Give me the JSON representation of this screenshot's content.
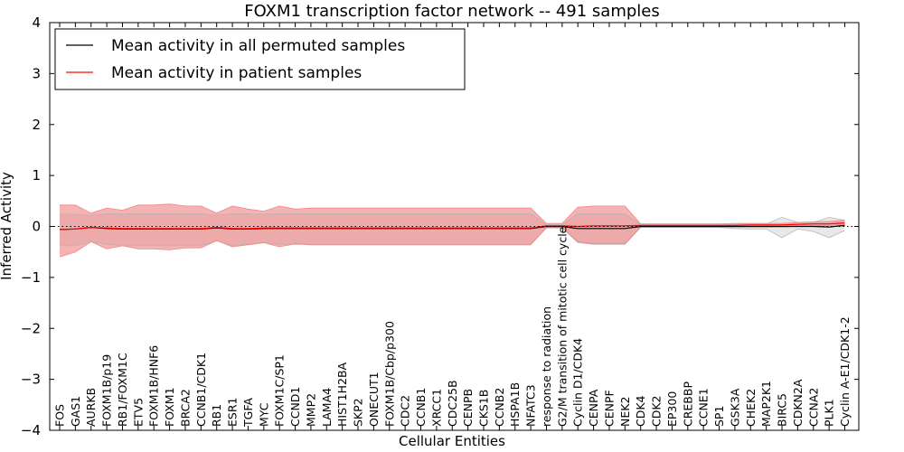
{
  "chart_data": {
    "type": "line",
    "title": "FOXM1 transcription factor network -- 491 samples",
    "xlabel": "Cellular Entities",
    "ylabel": "Inferred Activity",
    "ylim": [
      -4,
      4
    ],
    "yticks": [
      "−4",
      "−3",
      "−2",
      "−1",
      "0",
      "1",
      "2",
      "3",
      "4"
    ],
    "legend_position": "top-left",
    "colors": {
      "permuted_line": "#000000",
      "patient_line": "#ff0000",
      "permuted_band": "#b3b3b3",
      "patient_band": "#f08080"
    },
    "categories": [
      "FOS",
      "GAS1",
      "AURKB",
      "FOXM1B/p19",
      "RB1/FOXM1C",
      "ETV5",
      "FOXM1B/HNF6",
      "FOXM1",
      "BRCA2",
      "CCNB1/CDK1",
      "RB1",
      "ESR1",
      "TGFA",
      "MYC",
      "FOXM1C/SP1",
      "CCND1",
      "MMP2",
      "LAMA4",
      "HIST1H2BA",
      "SKP2",
      "ONECUT1",
      "FOXM1B/Cbp/p300",
      "CDC2",
      "CCNB1",
      "XRCC1",
      "CDC25B",
      "CENPB",
      "CKS1B",
      "CCNB2",
      "HSPA1B",
      "NFATC3",
      "response to radiation",
      "G2/M transition of mitotic cell cycle",
      "Cyclin D1/CDK4",
      "CENPA",
      "CENPF",
      "NEK2",
      "CDK4",
      "CDK2",
      "EP300",
      "CREBBP",
      "CCNE1",
      "SP1",
      "GSK3A",
      "CHEK2",
      "MAP2K1",
      "BIRC5",
      "CDKN2A",
      "CCNA2",
      "PLK1",
      "Cyclin A-E1/CDK1-2"
    ],
    "series": [
      {
        "name": "Mean activity in all permuted samples",
        "values": [
          -0.06,
          -0.05,
          -0.02,
          -0.04,
          -0.05,
          -0.05,
          -0.05,
          -0.05,
          -0.05,
          -0.05,
          -0.03,
          -0.05,
          -0.05,
          -0.04,
          -0.04,
          -0.04,
          -0.04,
          -0.04,
          -0.04,
          -0.04,
          -0.04,
          -0.04,
          -0.04,
          -0.04,
          -0.04,
          -0.04,
          -0.04,
          -0.04,
          -0.04,
          -0.04,
          -0.04,
          0.0,
          0.0,
          -0.04,
          -0.04,
          -0.04,
          -0.04,
          0.0,
          0.0,
          0.0,
          0.0,
          0.0,
          0.0,
          0.0,
          0.0,
          0.0,
          0.0,
          0.0,
          0.0,
          -0.01,
          0.02
        ],
        "lower": [
          -0.38,
          -0.38,
          -0.3,
          -0.35,
          -0.38,
          -0.38,
          -0.38,
          -0.38,
          -0.38,
          -0.38,
          -0.28,
          -0.38,
          -0.35,
          -0.32,
          -0.35,
          -0.35,
          -0.35,
          -0.35,
          -0.35,
          -0.35,
          -0.35,
          -0.35,
          -0.35,
          -0.35,
          -0.35,
          -0.35,
          -0.35,
          -0.35,
          -0.35,
          -0.35,
          -0.35,
          -0.03,
          -0.03,
          -0.32,
          -0.35,
          -0.35,
          -0.35,
          -0.02,
          -0.02,
          -0.02,
          -0.02,
          -0.02,
          -0.02,
          -0.04,
          -0.05,
          -0.05,
          -0.22,
          -0.05,
          -0.1,
          -0.22,
          -0.08
        ],
        "upper": [
          0.24,
          0.24,
          0.22,
          0.25,
          0.25,
          0.25,
          0.25,
          0.25,
          0.25,
          0.25,
          0.22,
          0.25,
          0.25,
          0.24,
          0.25,
          0.25,
          0.25,
          0.25,
          0.25,
          0.25,
          0.25,
          0.25,
          0.25,
          0.25,
          0.25,
          0.25,
          0.25,
          0.25,
          0.25,
          0.25,
          0.25,
          0.03,
          0.03,
          0.25,
          0.25,
          0.25,
          0.25,
          0.03,
          0.03,
          0.03,
          0.03,
          0.03,
          0.03,
          0.04,
          0.05,
          0.05,
          0.18,
          0.08,
          0.08,
          0.18,
          0.12
        ]
      },
      {
        "name": "Mean activity in patient samples",
        "values": [
          -0.06,
          -0.05,
          -0.02,
          -0.03,
          -0.04,
          -0.04,
          -0.04,
          -0.04,
          -0.04,
          -0.04,
          -0.02,
          -0.04,
          -0.04,
          -0.03,
          -0.03,
          -0.03,
          -0.03,
          -0.03,
          -0.03,
          -0.03,
          -0.03,
          -0.03,
          -0.03,
          -0.03,
          -0.03,
          -0.03,
          -0.03,
          -0.03,
          -0.03,
          -0.03,
          -0.03,
          0.01,
          0.01,
          0.0,
          0.01,
          0.01,
          0.01,
          0.02,
          0.02,
          0.02,
          0.02,
          0.02,
          0.02,
          0.02,
          0.03,
          0.03,
          0.03,
          0.04,
          0.05,
          0.05,
          0.07
        ],
        "lower": [
          -0.6,
          -0.5,
          -0.3,
          -0.44,
          -0.38,
          -0.44,
          -0.44,
          -0.46,
          -0.42,
          -0.42,
          -0.28,
          -0.4,
          -0.36,
          -0.32,
          -0.4,
          -0.34,
          -0.36,
          -0.36,
          -0.36,
          -0.36,
          -0.36,
          -0.36,
          -0.36,
          -0.36,
          -0.36,
          -0.36,
          -0.36,
          -0.36,
          -0.36,
          -0.36,
          -0.36,
          -0.02,
          -0.02,
          -0.3,
          -0.34,
          -0.34,
          -0.34,
          -0.01,
          -0.01,
          -0.01,
          -0.01,
          -0.01,
          -0.01,
          -0.01,
          -0.01,
          -0.01,
          -0.01,
          0.0,
          0.01,
          0.02,
          0.03
        ],
        "upper": [
          0.42,
          0.42,
          0.26,
          0.36,
          0.32,
          0.42,
          0.42,
          0.44,
          0.4,
          0.4,
          0.26,
          0.4,
          0.34,
          0.3,
          0.4,
          0.34,
          0.36,
          0.36,
          0.36,
          0.36,
          0.36,
          0.36,
          0.36,
          0.36,
          0.36,
          0.36,
          0.36,
          0.36,
          0.36,
          0.36,
          0.36,
          0.06,
          0.06,
          0.38,
          0.4,
          0.4,
          0.4,
          0.05,
          0.05,
          0.05,
          0.05,
          0.05,
          0.05,
          0.06,
          0.06,
          0.06,
          0.06,
          0.08,
          0.09,
          0.1,
          0.12
        ]
      }
    ]
  }
}
